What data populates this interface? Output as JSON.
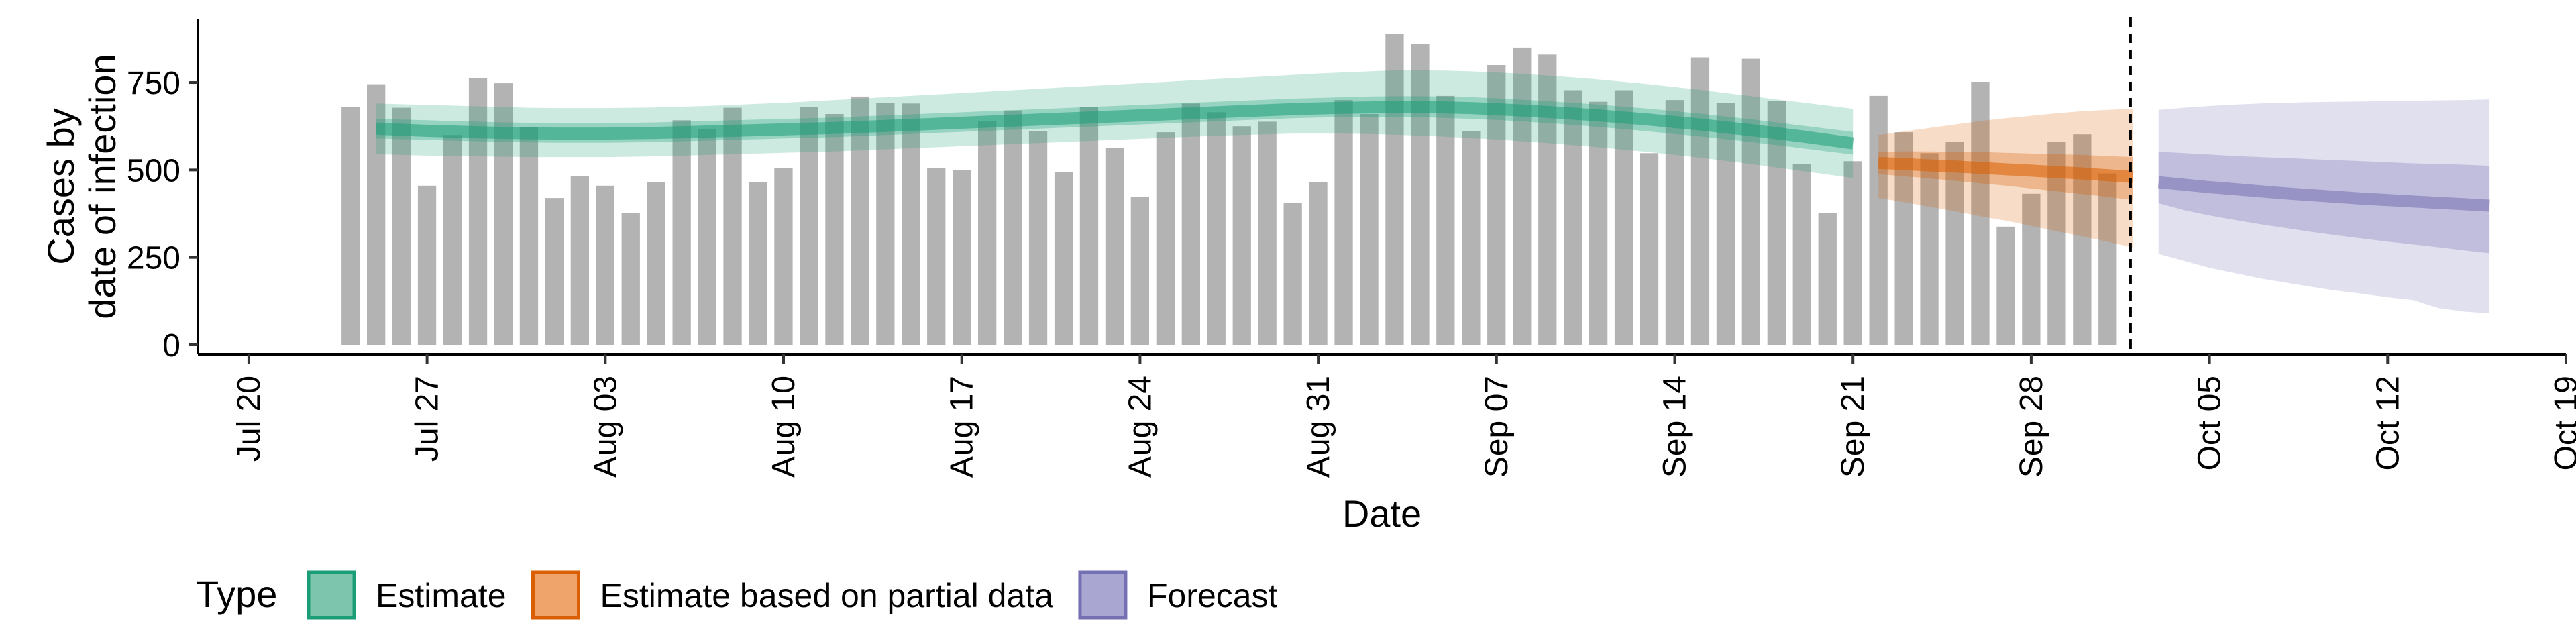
{
  "chart_data": {
    "type": "bar",
    "xlabel": "Date",
    "ylabel": [
      "Cases by",
      "date of infection"
    ],
    "ylim": [
      0,
      940
    ],
    "y_ticks": [
      0,
      250,
      500,
      750
    ],
    "x_range": [
      "2020-07-18",
      "2020-10-19"
    ],
    "x_ticks": [
      {
        "date": "2020-07-20",
        "label": "Jul 20"
      },
      {
        "date": "2020-07-27",
        "label": "Jul 27"
      },
      {
        "date": "2020-08-03",
        "label": "Aug 03"
      },
      {
        "date": "2020-08-10",
        "label": "Aug 10"
      },
      {
        "date": "2020-08-17",
        "label": "Aug 17"
      },
      {
        "date": "2020-08-24",
        "label": "Aug 24"
      },
      {
        "date": "2020-08-31",
        "label": "Aug 31"
      },
      {
        "date": "2020-09-07",
        "label": "Sep 07"
      },
      {
        "date": "2020-09-14",
        "label": "Sep 14"
      },
      {
        "date": "2020-09-21",
        "label": "Sep 21"
      },
      {
        "date": "2020-09-28",
        "label": "Sep 28"
      },
      {
        "date": "2020-10-05",
        "label": "Oct 05"
      },
      {
        "date": "2020-10-12",
        "label": "Oct 12"
      },
      {
        "date": "2020-10-19",
        "label": "Oct 19"
      }
    ],
    "forecast_cutoff": "2020-10-02",
    "grid": false,
    "bar_color": "#b3b3b3",
    "bars": {
      "start_date": "2020-07-24",
      "values": [
        680,
        745,
        678,
        455,
        600,
        762,
        748,
        622,
        420,
        482,
        455,
        378,
        465,
        642,
        618,
        678,
        465,
        505,
        680,
        660,
        710,
        692,
        690,
        505,
        500,
        640,
        670,
        612,
        495,
        680,
        562,
        422,
        608,
        690,
        665,
        625,
        638,
        405,
        465,
        700,
        660,
        890,
        860,
        712,
        612,
        800,
        850,
        830,
        728,
        695,
        728,
        548,
        700,
        822,
        692,
        818,
        698,
        518,
        378,
        525,
        712,
        608,
        548,
        580,
        752,
        338,
        432,
        580,
        602,
        490
      ]
    },
    "legend": {
      "title": "Type",
      "position": "bottom-left",
      "entries": [
        {
          "label": "Estimate",
          "fill": "#7dc6ad",
          "stroke": "#1b9e77"
        },
        {
          "label": "Estimate based on partial data",
          "fill": "#eea46b",
          "stroke": "#d95f02"
        },
        {
          "label": "Forecast",
          "fill": "#a9a7d2",
          "stroke": "#7570b3"
        }
      ]
    },
    "series": [
      {
        "type": "Estimate",
        "color": "#1b9e77",
        "start_date": "2020-07-25",
        "median": [
          618,
          615,
          612,
          610,
          608,
          606,
          605,
          604,
          604,
          604,
          605,
          606,
          608,
          610,
          612,
          614,
          616,
          618,
          620,
          623,
          626,
          629,
          632,
          635,
          638,
          641,
          644,
          647,
          650,
          653,
          656,
          659,
          662,
          665,
          668,
          671,
          674,
          676,
          678,
          679,
          680,
          680,
          679,
          677,
          674,
          670,
          666,
          661,
          656,
          650,
          644,
          637,
          630,
          622,
          614,
          605,
          596,
          586,
          576
        ],
        "lower_90": [
          545,
          543,
          541,
          540,
          539,
          538,
          537,
          537,
          537,
          537,
          538,
          539,
          541,
          543,
          545,
          547,
          549,
          551,
          553,
          556,
          559,
          562,
          565,
          568,
          571,
          574,
          577,
          580,
          583,
          586,
          589,
          592,
          595,
          598,
          600,
          602,
          604,
          604,
          604,
          603,
          601,
          598,
          595,
          591,
          587,
          582,
          577,
          571,
          565,
          558,
          551,
          543,
          535,
          526,
          517,
          507,
          497,
          487,
          477
        ],
        "upper_90": [
          690,
          688,
          686,
          684,
          682,
          680,
          678,
          677,
          677,
          677,
          678,
          679,
          681,
          683,
          686,
          689,
          692,
          696,
          700,
          704,
          708,
          712,
          716,
          720,
          724,
          728,
          732,
          736,
          740,
          744,
          748,
          752,
          756,
          760,
          764,
          768,
          772,
          776,
          779,
          782,
          785,
          785,
          784,
          782,
          779,
          775,
          770,
          765,
          759,
          752,
          745,
          737,
          729,
          720,
          711,
          702,
          693,
          684,
          675
        ],
        "lower_50": [
          590,
          588,
          586,
          584,
          582,
          580,
          579,
          578,
          578,
          578,
          579,
          580,
          582,
          584,
          586,
          588,
          590,
          592,
          594,
          597,
          600,
          603,
          606,
          609,
          612,
          615,
          618,
          621,
          624,
          627,
          630,
          633,
          636,
          639,
          642,
          645,
          648,
          650,
          651,
          652,
          652,
          651,
          649,
          646,
          643,
          639,
          634,
          629,
          623,
          617,
          610,
          603,
          596,
          588,
          580,
          571,
          562,
          553,
          544
        ],
        "upper_50": [
          646,
          644,
          642,
          640,
          638,
          636,
          635,
          634,
          634,
          634,
          635,
          636,
          638,
          640,
          642,
          644,
          646,
          648,
          650,
          653,
          656,
          659,
          662,
          665,
          668,
          671,
          674,
          677,
          680,
          683,
          686,
          689,
          692,
          695,
          698,
          701,
          704,
          706,
          708,
          710,
          711,
          711,
          710,
          708,
          705,
          701,
          697,
          692,
          687,
          681,
          675,
          668,
          661,
          653,
          645,
          636,
          627,
          618,
          609
        ]
      },
      {
        "type": "Estimate based on partial data",
        "color": "#d95f02",
        "start_date": "2020-09-22",
        "median": [
          520,
          517,
          513,
          510,
          506,
          502,
          498,
          494,
          490,
          485,
          480
        ],
        "lower_90": [
          420,
          408,
          395,
          382,
          368,
          355,
          340,
          325,
          310,
          295,
          278
        ],
        "upper_90": [
          600,
          610,
          620,
          630,
          640,
          648,
          655,
          662,
          668,
          672,
          675
        ],
        "lower_50": [
          488,
          482,
          476,
          469,
          462,
          455,
          447,
          439,
          431,
          423,
          414
        ],
        "upper_50": [
          552,
          553,
          553,
          552,
          551,
          549,
          547,
          545,
          543,
          540,
          537
        ]
      },
      {
        "type": "Forecast",
        "color": "#7570b3",
        "start_date": "2020-10-03",
        "median": [
          465,
          458,
          451,
          445,
          439,
          433,
          428,
          423,
          418,
          414,
          410,
          406,
          402,
          398
        ],
        "lower_90": [
          260,
          240,
          220,
          205,
          190,
          178,
          166,
          155,
          146,
          136,
          128,
          105,
          95,
          90
        ],
        "upper_90": [
          672,
          678,
          683,
          687,
          690,
          692,
          694,
          695,
          696,
          697,
          698,
          699,
          700,
          702
        ],
        "lower_50": [
          405,
          385,
          370,
          357,
          345,
          334,
          323,
          313,
          304,
          295,
          287,
          279,
          270,
          262
        ],
        "upper_50": [
          552,
          548,
          544,
          540,
          537,
          534,
          531,
          528,
          525,
          522,
          519,
          517,
          515,
          512
        ]
      }
    ]
  }
}
